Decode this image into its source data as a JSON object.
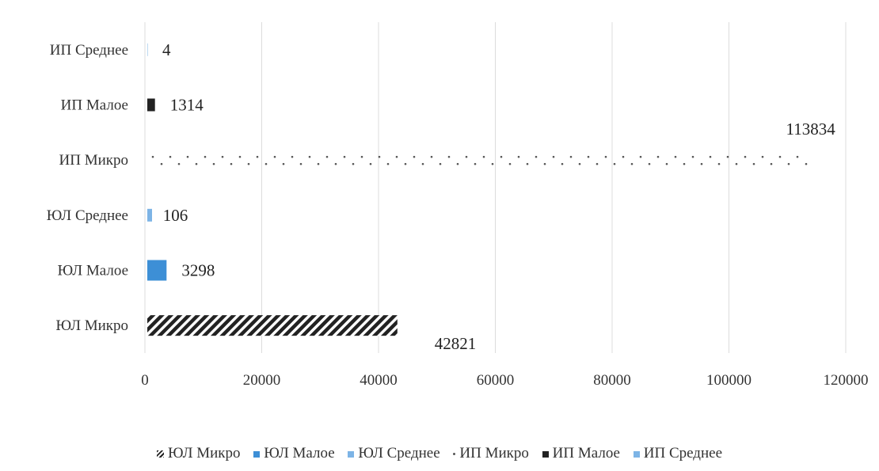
{
  "chart_data": {
    "type": "bar",
    "orientation": "horizontal",
    "categories": [
      "ЮЛ Микро",
      "ЮЛ Малое",
      "ЮЛ Среднее",
      "ИП Микро",
      "ИП Малое",
      "ИП Среднее"
    ],
    "values": [
      42821,
      3298,
      106,
      113834,
      1314,
      4
    ],
    "value_labels": [
      "42821",
      "3298",
      "106",
      "113834",
      "1314",
      "4"
    ],
    "x_ticks": [
      "0",
      "20000",
      "40000",
      "60000",
      "80000",
      "100000",
      "120000"
    ],
    "xlim": [
      0,
      120000
    ],
    "grid": "vertical",
    "legend_position": "bottom",
    "series_styles": [
      {
        "pattern": "hatch",
        "color": "#222222"
      },
      {
        "pattern": "solid",
        "color": "#3d8fd6"
      },
      {
        "pattern": "solid",
        "color": "#7db4e6"
      },
      {
        "pattern": "dots",
        "color": "#555555"
      },
      {
        "pattern": "solid",
        "color": "#222222"
      },
      {
        "pattern": "solid",
        "color": "#7db4e6"
      }
    ],
    "legend": [
      "ЮЛ Микро",
      "ЮЛ Малое",
      "ЮЛ Среднее",
      "ИП Микро",
      "ИП Малое",
      "ИП Среднее"
    ]
  }
}
